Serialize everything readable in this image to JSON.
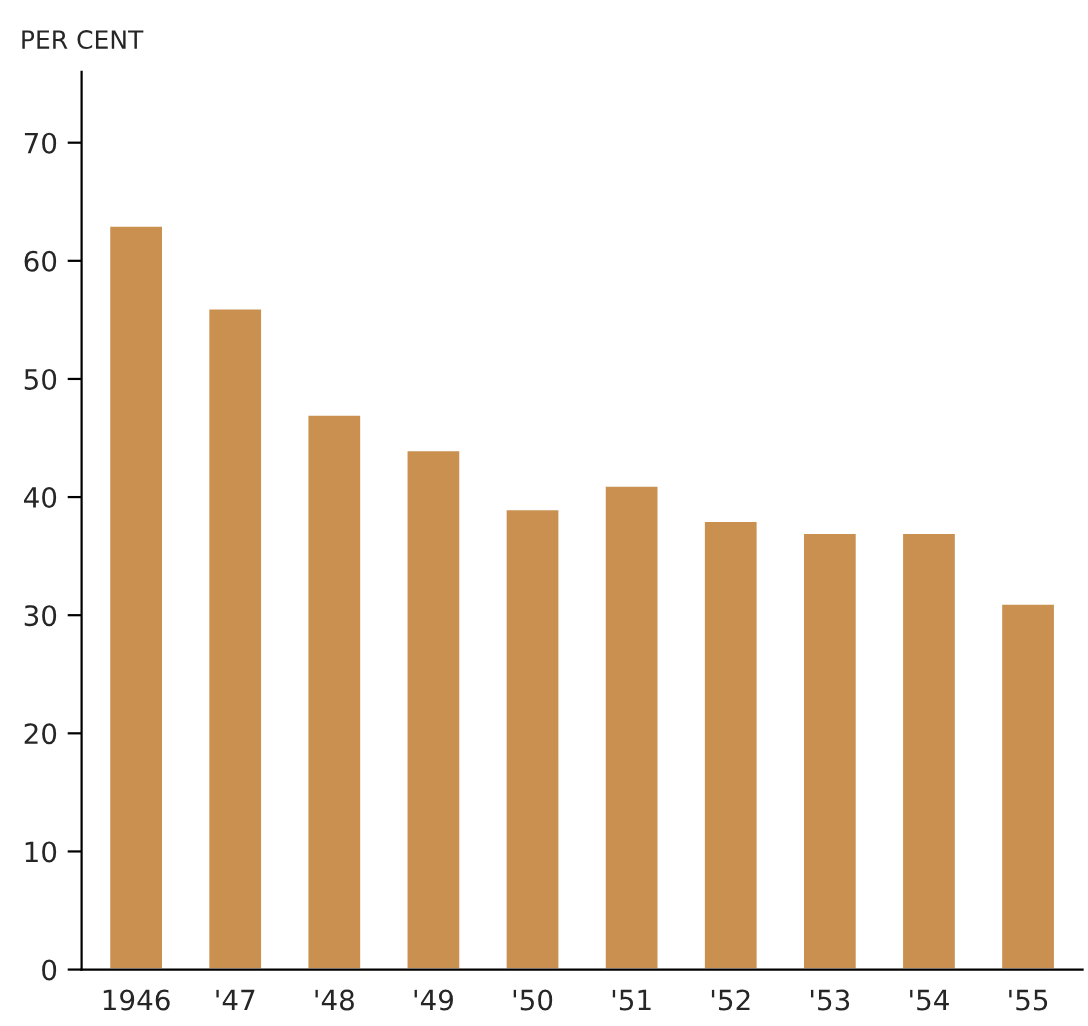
{
  "chart_data": {
    "type": "bar",
    "ylabel": "PER CENT",
    "categories": [
      "1946",
      "'47",
      "'48",
      "'49",
      "'50",
      "'51",
      "'52",
      "'53",
      "'54",
      "'55"
    ],
    "values": [
      63,
      56,
      47,
      44,
      39,
      41,
      38,
      37,
      37,
      31
    ],
    "color": "#c99050",
    "ylim": [
      0,
      76
    ],
    "yticks": [
      0,
      10,
      20,
      30,
      40,
      50,
      60,
      70
    ],
    "grid": false,
    "legend": false
  }
}
